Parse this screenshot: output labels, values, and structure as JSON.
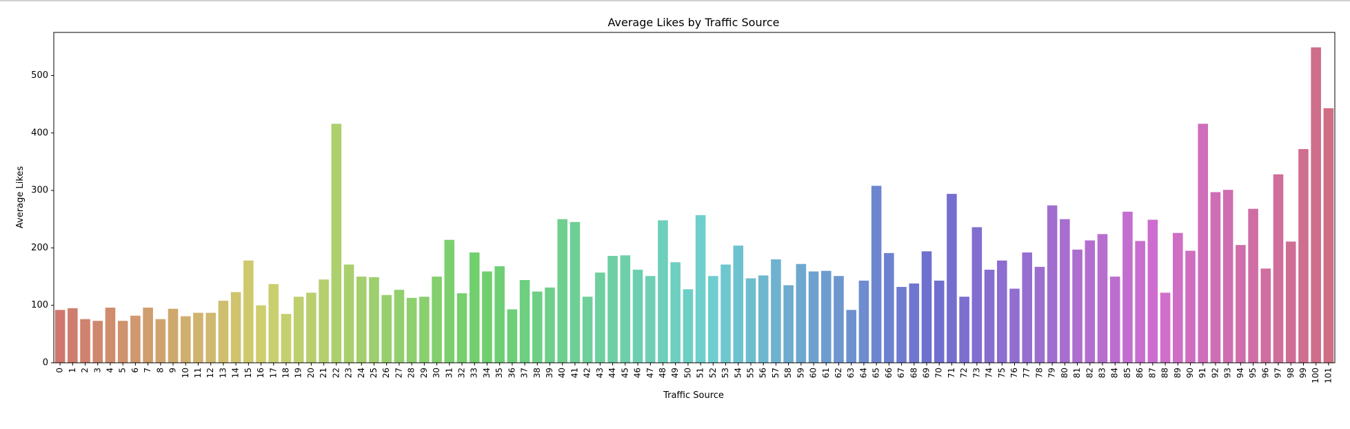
{
  "chart_data": {
    "type": "bar",
    "title": "Average Likes by Traffic Source",
    "xlabel": "Traffic Source",
    "ylabel": "Average Likes",
    "ylim": [
      0,
      575
    ],
    "yticks": [
      0,
      100,
      200,
      300,
      400,
      500
    ],
    "grid": false,
    "legend": "none",
    "categories": [
      "0",
      "1",
      "2",
      "3",
      "4",
      "5",
      "6",
      "7",
      "8",
      "9",
      "10",
      "11",
      "12",
      "13",
      "14",
      "15",
      "16",
      "17",
      "18",
      "19",
      "20",
      "21",
      "22",
      "23",
      "24",
      "25",
      "26",
      "27",
      "28",
      "29",
      "30",
      "31",
      "32",
      "33",
      "34",
      "35",
      "36",
      "37",
      "38",
      "39",
      "40",
      "41",
      "42",
      "43",
      "44",
      "45",
      "46",
      "47",
      "48",
      "49",
      "50",
      "51",
      "52",
      "53",
      "54",
      "55",
      "56",
      "57",
      "58",
      "59",
      "60",
      "61",
      "62",
      "63",
      "64",
      "65",
      "66",
      "67",
      "68",
      "69",
      "70",
      "71",
      "72",
      "73",
      "74",
      "75",
      "76",
      "77",
      "78",
      "79",
      "80",
      "81",
      "82",
      "83",
      "84",
      "85",
      "86",
      "87",
      "88",
      "89",
      "90",
      "91",
      "92",
      "93",
      "94",
      "95",
      "96",
      "97",
      "98",
      "99",
      "100",
      "101"
    ],
    "values": [
      92,
      95,
      76,
      73,
      96,
      73,
      82,
      96,
      76,
      94,
      81,
      87,
      87,
      108,
      123,
      178,
      100,
      137,
      85,
      115,
      122,
      145,
      416,
      171,
      150,
      149,
      118,
      127,
      113,
      115,
      150,
      214,
      121,
      192,
      159,
      168,
      93,
      144,
      124,
      131,
      250,
      245,
      115,
      157,
      186,
      187,
      162,
      151,
      248,
      175,
      128,
      257,
      151,
      171,
      204,
      147,
      152,
      180,
      135,
      172,
      159,
      160,
      151,
      92,
      143,
      308,
      191,
      132,
      138,
      194,
      143,
      294,
      115,
      236,
      162,
      178,
      129,
      192,
      167,
      274,
      250,
      197,
      213,
      224,
      150,
      263,
      212,
      249,
      122,
      226,
      195,
      416,
      297,
      301,
      205,
      268,
      164,
      328,
      211,
      372,
      549,
      443
    ]
  }
}
